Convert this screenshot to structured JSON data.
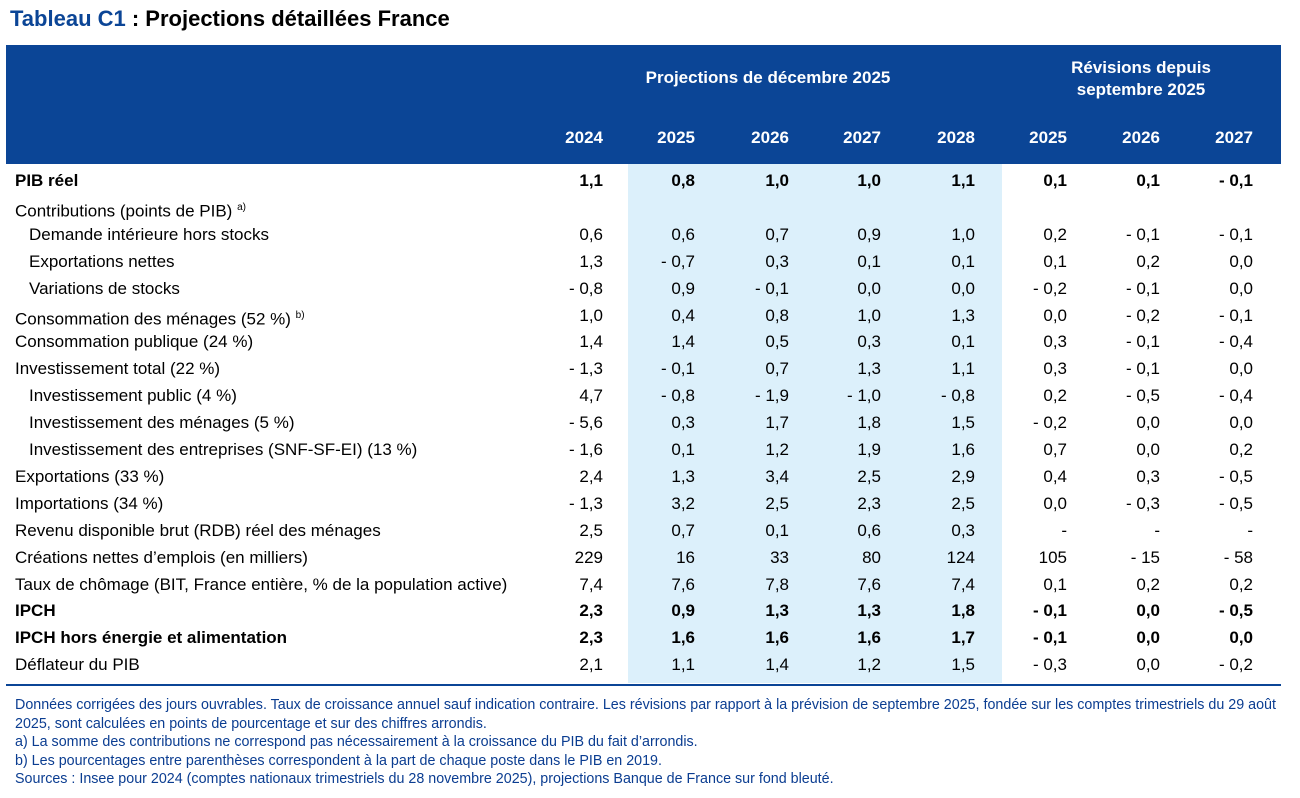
{
  "title": {
    "prefix": "Tableau C1",
    "rest": " : Projections détaillées France"
  },
  "header": {
    "group1": "Projections de décembre 2025",
    "group2_line1": "Révisions depuis",
    "group2_line2": "septembre 2025",
    "years": [
      "2024",
      "2025",
      "2026",
      "2027",
      "2028",
      "2025",
      "2026",
      "2027"
    ]
  },
  "colors": {
    "header": "#0b4596",
    "projection_band": "#dcf0fb"
  },
  "rows": [
    {
      "label": "PIB réel",
      "bold": true,
      "indent": false,
      "values": [
        "1,1",
        "0,8",
        "1,0",
        "1,0",
        "1,1",
        "0,1",
        "0,1",
        "- 0,1"
      ]
    },
    {
      "label": "Contributions (points de PIB)",
      "sup": "a)",
      "bold": false,
      "indent": false,
      "values": [
        "",
        "",
        "",
        "",
        "",
        "",
        "",
        ""
      ]
    },
    {
      "label": "Demande intérieure hors stocks",
      "indent": true,
      "values": [
        "0,6",
        "0,6",
        "0,7",
        "0,9",
        "1,0",
        "0,2",
        "- 0,1",
        "- 0,1"
      ]
    },
    {
      "label": "Exportations nettes",
      "indent": true,
      "values": [
        "1,3",
        "- 0,7",
        "0,3",
        "0,1",
        "0,1",
        "0,1",
        "0,2",
        "0,0"
      ]
    },
    {
      "label": "Variations de stocks",
      "indent": true,
      "values": [
        "- 0,8",
        "0,9",
        "- 0,1",
        "0,0",
        "0,0",
        "- 0,2",
        "- 0,1",
        "0,0"
      ]
    },
    {
      "label": "Consommation des ménages (52 %)",
      "sup": "b)",
      "values": [
        "1,0",
        "0,4",
        "0,8",
        "1,0",
        "1,3",
        "0,0",
        "- 0,2",
        "- 0,1"
      ]
    },
    {
      "label": "Consommation publique (24 %)",
      "values": [
        "1,4",
        "1,4",
        "0,5",
        "0,3",
        "0,1",
        "0,3",
        "- 0,1",
        "- 0,4"
      ]
    },
    {
      "label": "Investissement total (22 %)",
      "values": [
        "- 1,3",
        "- 0,1",
        "0,7",
        "1,3",
        "1,1",
        "0,3",
        "- 0,1",
        "0,0"
      ]
    },
    {
      "label": "Investissement public (4 %)",
      "indent": true,
      "values": [
        "4,7",
        "- 0,8",
        "- 1,9",
        "- 1,0",
        "- 0,8",
        "0,2",
        "- 0,5",
        "- 0,4"
      ]
    },
    {
      "label": "Investissement des ménages (5 %)",
      "indent": true,
      "values": [
        "- 5,6",
        "0,3",
        "1,7",
        "1,8",
        "1,5",
        "- 0,2",
        "0,0",
        "0,0"
      ]
    },
    {
      "label": "Investissement des entreprises (SNF-SF-EI) (13 %)",
      "indent": true,
      "values": [
        "- 1,6",
        "0,1",
        "1,2",
        "1,9",
        "1,6",
        "0,7",
        "0,0",
        "0,2"
      ]
    },
    {
      "label": "Exportations (33 %)",
      "values": [
        "2,4",
        "1,3",
        "3,4",
        "2,5",
        "2,9",
        "0,4",
        "0,3",
        "- 0,5"
      ]
    },
    {
      "label": "Importations (34 %)",
      "values": [
        "- 1,3",
        "3,2",
        "2,5",
        "2,3",
        "2,5",
        "0,0",
        "- 0,3",
        "- 0,5"
      ]
    },
    {
      "label": "Revenu disponible brut (RDB) réel des ménages",
      "values": [
        "2,5",
        "0,7",
        "0,1",
        "0,6",
        "0,3",
        "-",
        "-",
        "-"
      ]
    },
    {
      "label": "Créations nettes d’emplois (en milliers)",
      "values": [
        "229",
        "16",
        "33",
        "80",
        "124",
        "105",
        "- 15",
        "- 58"
      ]
    },
    {
      "label": "Taux de chômage (BIT, France entière, % de la population active)",
      "values": [
        "7,4",
        "7,6",
        "7,8",
        "7,6",
        "7,4",
        "0,1",
        "0,2",
        "0,2"
      ]
    },
    {
      "label": "IPCH",
      "bold": true,
      "values": [
        "2,3",
        "0,9",
        "1,3",
        "1,3",
        "1,8",
        "- 0,1",
        "0,0",
        "- 0,5"
      ]
    },
    {
      "label": "IPCH hors énergie et alimentation",
      "bold": true,
      "values": [
        "2,3",
        "1,6",
        "1,6",
        "1,6",
        "1,7",
        "- 0,1",
        "0,0",
        "0,0"
      ]
    },
    {
      "label": "Déflateur du PIB",
      "values": [
        "2,1",
        "1,1",
        "1,4",
        "1,2",
        "1,5",
        "- 0,3",
        "0,0",
        "- 0,2"
      ]
    }
  ],
  "notes": [
    "Données corrigées des jours ouvrables. Taux de croissance annuel sauf indication contraire. Les révisions par rapport à la prévision de septembre 2025, fondée sur les comptes trimestriels du 29 août 2025, sont calculées en points de pourcentage et sur des chiffres arrondis.",
    "a) La somme des contributions ne correspond pas nécessairement à la croissance du PIB du fait d’arrondis.",
    "b) Les pourcentages entre parenthèses correspondent à la part de chaque poste dans le PIB en 2019.",
    "Sources : Insee pour 2024 (comptes nationaux trimestriels du 28 novembre 2025), projections Banque de France sur fond bleuté."
  ]
}
